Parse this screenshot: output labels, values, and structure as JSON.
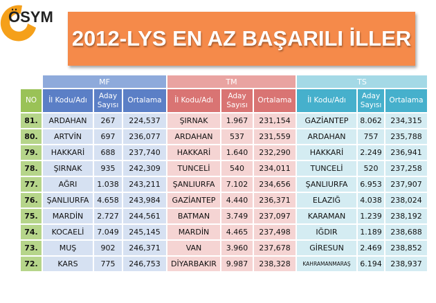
{
  "logo": {
    "text": "ÖSYM"
  },
  "title": "2012-LYS EN AZ BAŞARILI İLLER",
  "groups": {
    "mf": "MF",
    "tm": "TM",
    "ts": "TS"
  },
  "headers": {
    "no": "NO",
    "il": "İl Kodu/Adı",
    "aday_line1": "Aday",
    "aday_line2": "Sayısı",
    "ortalama": "Ortalama"
  },
  "rows": [
    {
      "no": "81.",
      "mf": {
        "il": "ARDAHAN",
        "aday": "267",
        "ort": "224,537"
      },
      "tm": {
        "il": "ŞIRNAK",
        "aday": "1.967",
        "ort": "231,154"
      },
      "ts": {
        "il": "GAZİANTEP",
        "aday": "8.062",
        "ort": "234,315"
      }
    },
    {
      "no": "80.",
      "mf": {
        "il": "ARTVİN",
        "aday": "697",
        "ort": "236,077"
      },
      "tm": {
        "il": "ARDAHAN",
        "aday": "537",
        "ort": "231,559"
      },
      "ts": {
        "il": "ARDAHAN",
        "aday": "757",
        "ort": "235,788"
      }
    },
    {
      "no": "79.",
      "mf": {
        "il": "HAKKARİ",
        "aday": "688",
        "ort": "237,740"
      },
      "tm": {
        "il": "HAKKARİ",
        "aday": "1.640",
        "ort": "232,290"
      },
      "ts": {
        "il": "HAKKARİ",
        "aday": "2.249",
        "ort": "236,941"
      }
    },
    {
      "no": "78.",
      "mf": {
        "il": "ŞIRNAK",
        "aday": "935",
        "ort": "242,309"
      },
      "tm": {
        "il": "TUNCELİ",
        "aday": "540",
        "ort": "234,011"
      },
      "ts": {
        "il": "TUNCELİ",
        "aday": "520",
        "ort": "237,258"
      }
    },
    {
      "no": "77.",
      "mf": {
        "il": "AĞRI",
        "aday": "1.038",
        "ort": "243,211"
      },
      "tm": {
        "il": "ŞANLIURFA",
        "aday": "7.102",
        "ort": "234,656"
      },
      "ts": {
        "il": "ŞANLIURFA",
        "aday": "6.953",
        "ort": "237,907"
      }
    },
    {
      "no": "76.",
      "mf": {
        "il": "ŞANLIURFA",
        "aday": "4.658",
        "ort": "243,984"
      },
      "tm": {
        "il": "GAZİANTEP",
        "aday": "4.440",
        "ort": "236,371"
      },
      "ts": {
        "il": "ELAZIĞ",
        "aday": "4.038",
        "ort": "238,024"
      }
    },
    {
      "no": "75.",
      "mf": {
        "il": "MARDİN",
        "aday": "2.727",
        "ort": "244,561"
      },
      "tm": {
        "il": "BATMAN",
        "aday": "3.749",
        "ort": "237,097"
      },
      "ts": {
        "il": "KARAMAN",
        "aday": "1.239",
        "ort": "238,192"
      }
    },
    {
      "no": "74.",
      "mf": {
        "il": "KOCAELİ",
        "aday": "7.049",
        "ort": "245,145"
      },
      "tm": {
        "il": "MARDİN",
        "aday": "4.465",
        "ort": "237,498"
      },
      "ts": {
        "il": "IĞDIR",
        "aday": "1.189",
        "ort": "238,688"
      }
    },
    {
      "no": "73.",
      "mf": {
        "il": "MUŞ",
        "aday": "902",
        "ort": "246,371"
      },
      "tm": {
        "il": "VAN",
        "aday": "3.960",
        "ort": "237,678"
      },
      "ts": {
        "il": "GİRESUN",
        "aday": "2.469",
        "ort": "238,852"
      }
    },
    {
      "no": "72.",
      "mf": {
        "il": "KARS",
        "aday": "775",
        "ort": "246,753"
      },
      "tm": {
        "il": "DİYARBAKIR",
        "aday": "9.987",
        "ort": "238,328"
      },
      "ts": {
        "il": "KAHRAMANMARAŞ",
        "aday": "6.194",
        "ort": "238,937"
      }
    }
  ],
  "colors": {
    "banner": "#f58a4a",
    "logo_circle": "#f5a01a",
    "mf_header": "#5b7fc6",
    "tm_header": "#d97473",
    "ts_header": "#46b0cc",
    "no_header": "#9ac257"
  }
}
